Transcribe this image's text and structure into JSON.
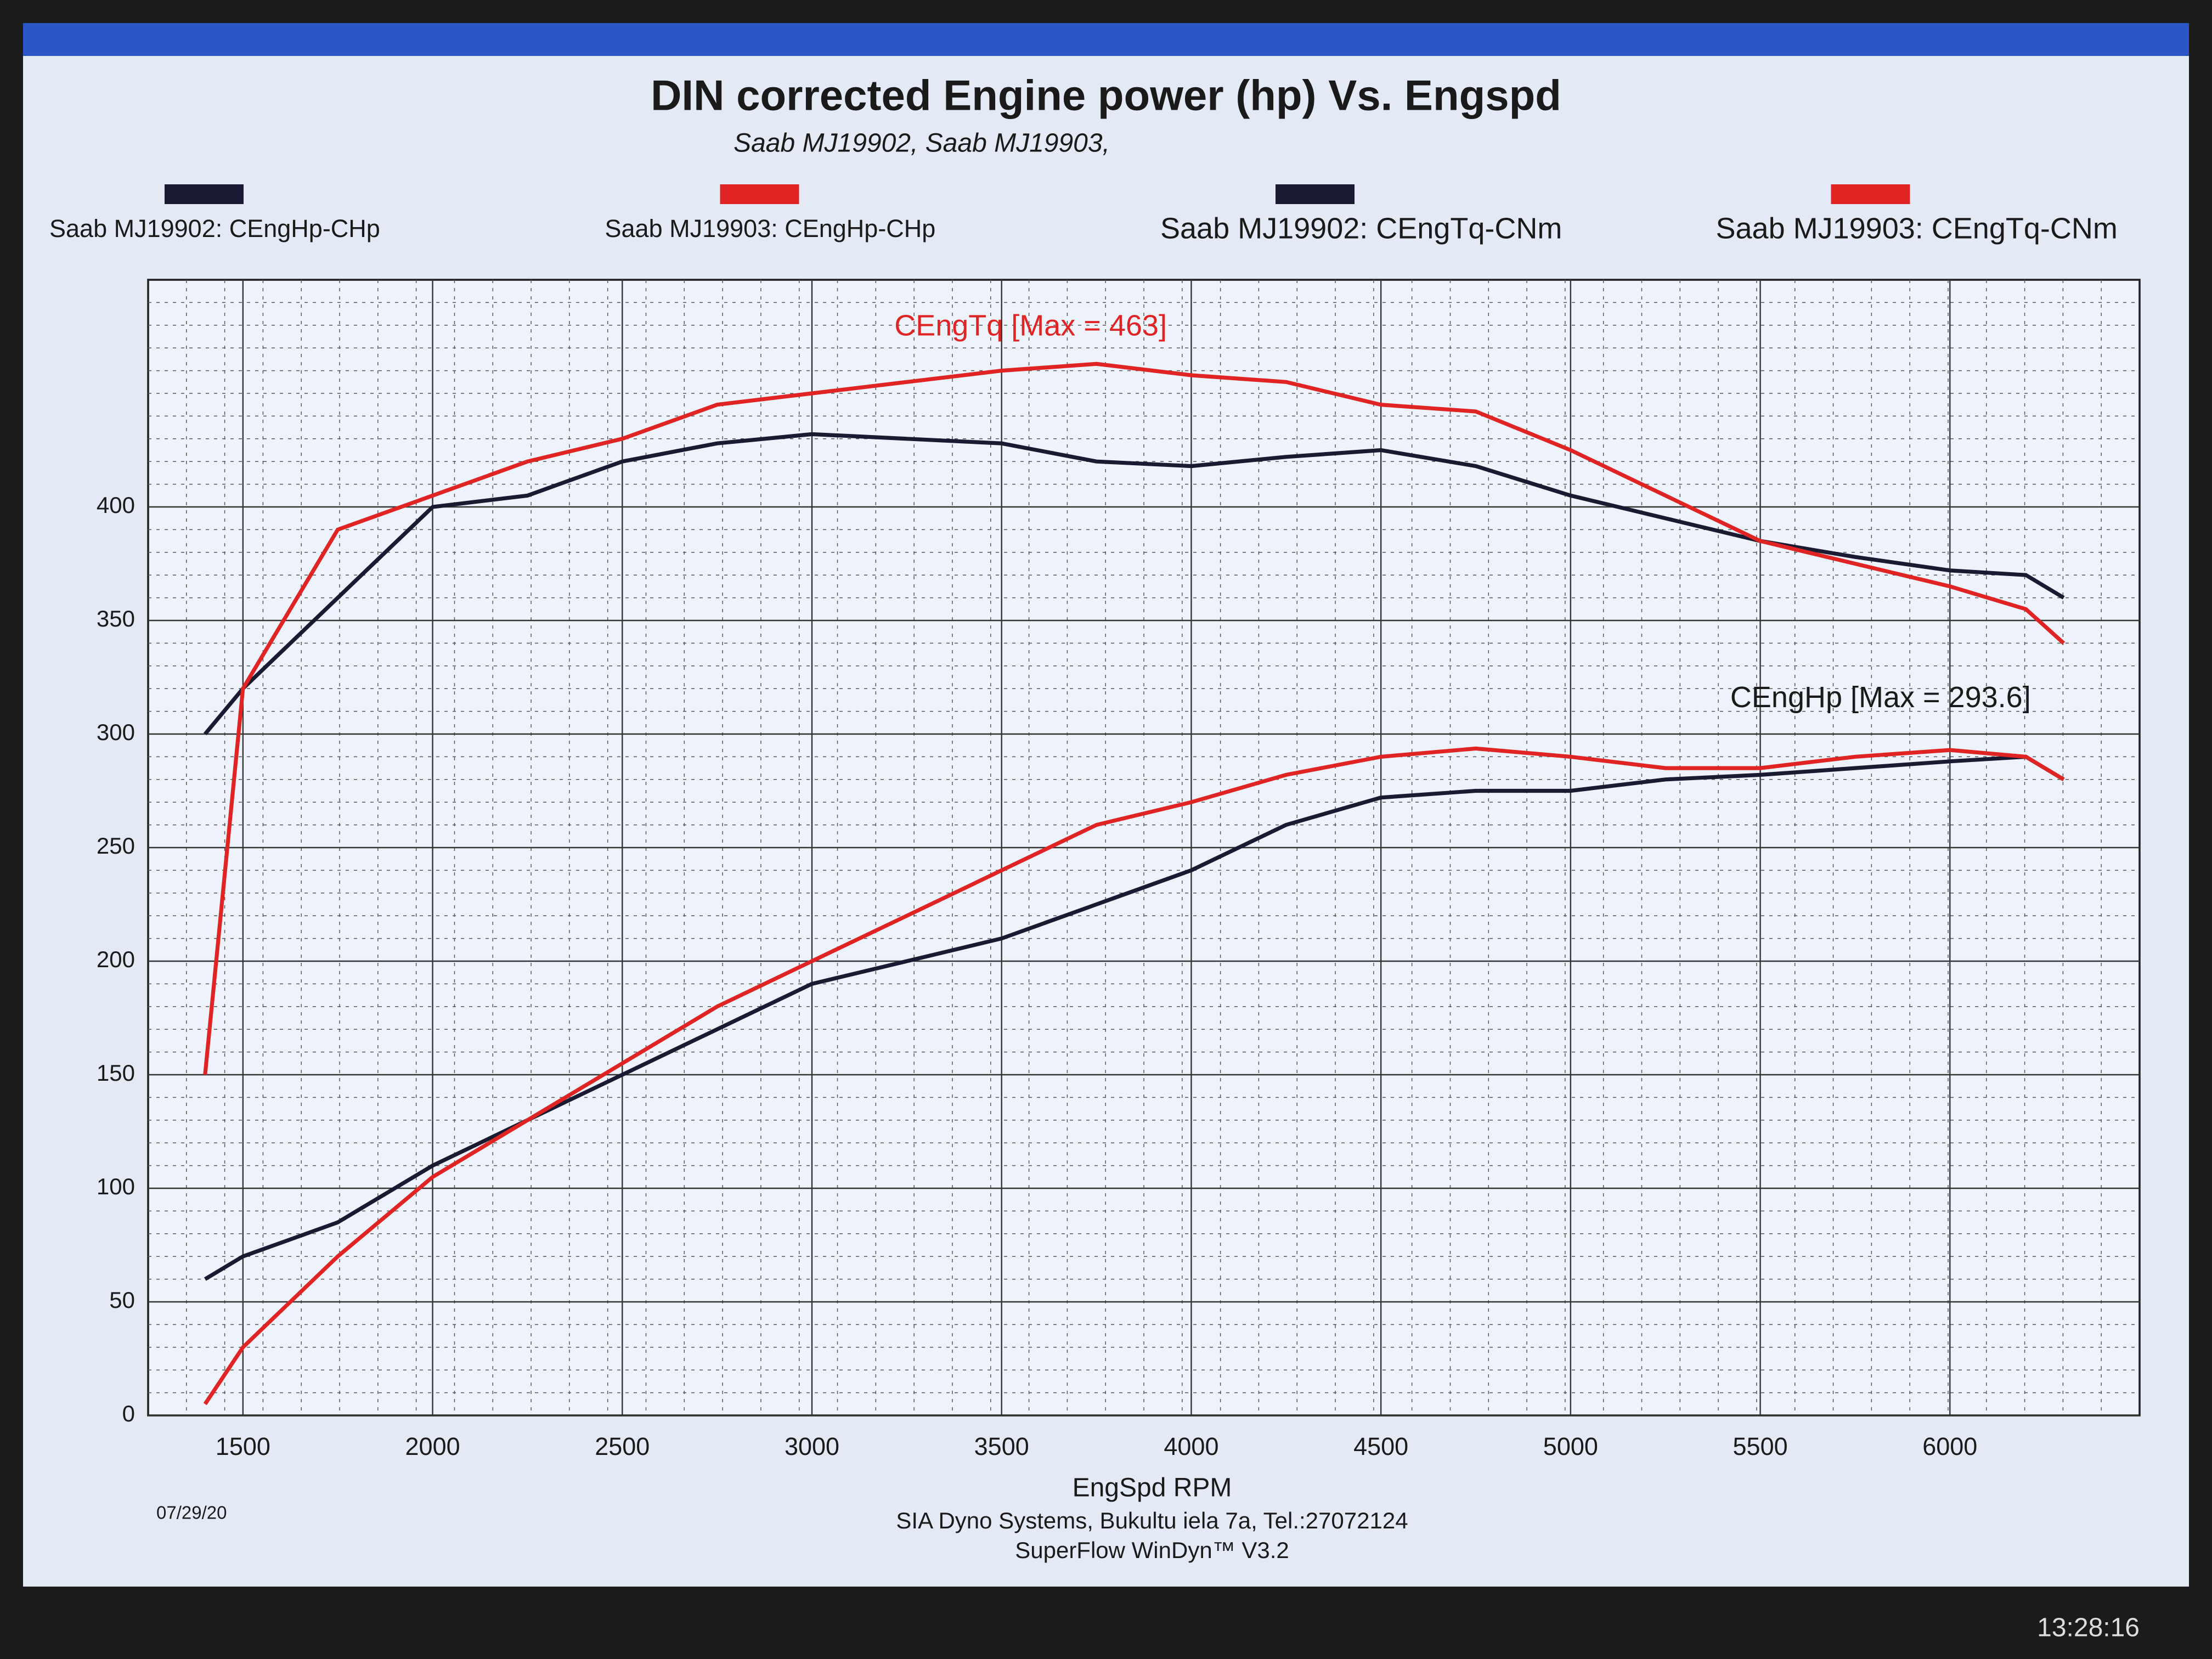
{
  "chart_data": {
    "type": "line",
    "title": "DIN corrected Engine power (hp) Vs. Engspd",
    "subtitle": "Saab MJ19902, Saab MJ19903,",
    "x_label": "EngSpd RPM",
    "annotations": [
      "CEngTq [Max = 463]",
      "CEngHp [Max = 293.6]"
    ],
    "x": [
      1400,
      1500,
      1750,
      2000,
      2250,
      2500,
      2750,
      3000,
      3250,
      3500,
      3750,
      4000,
      4250,
      4500,
      4750,
      5000,
      5250,
      5500,
      5750,
      6000,
      6200,
      6300
    ],
    "series": [
      {
        "name": "Saab MJ19902: CEngHp-CHp",
        "color": "#1a1a33",
        "values": [
          60,
          70,
          85,
          110,
          130,
          150,
          170,
          190,
          200,
          210,
          225,
          240,
          260,
          272,
          275,
          275,
          280,
          282,
          285,
          288,
          290,
          280
        ]
      },
      {
        "name": "Saab MJ19903: CEngHp-CHp",
        "color": "#e02424",
        "values": [
          5,
          30,
          70,
          105,
          130,
          155,
          180,
          200,
          220,
          240,
          260,
          270,
          282,
          290,
          293.6,
          290,
          285,
          285,
          290,
          293,
          290,
          280
        ]
      },
      {
        "name": "Saab MJ19902: CEngTq-CNm",
        "color": "#1a1a33",
        "values": [
          300,
          320,
          360,
          400,
          405,
          420,
          428,
          432,
          430,
          428,
          420,
          418,
          422,
          425,
          418,
          405,
          395,
          385,
          378,
          372,
          370,
          360
        ]
      },
      {
        "name": "Saab MJ19903: CEngTq-CNm",
        "color": "#e02424",
        "values": [
          150,
          320,
          390,
          405,
          420,
          430,
          445,
          450,
          455,
          460,
          463,
          458,
          455,
          445,
          442,
          425,
          405,
          385,
          375,
          365,
          355,
          340
        ]
      }
    ],
    "xlim": [
      1250,
      6500
    ],
    "ylim": [
      0,
      500
    ],
    "xticks": [
      1500,
      2000,
      2500,
      3000,
      3500,
      4000,
      4500,
      5000,
      5500,
      6000
    ],
    "yticks": [
      0,
      50,
      100,
      150,
      200,
      250,
      300,
      350,
      400
    ],
    "grid": true
  },
  "footer": {
    "date": "07/29/20",
    "company": "SIA Dyno Systems, Bukultu iela 7a, Tel.:27072124",
    "software": "SuperFlow WinDyn™ V3.2",
    "clock": "13:28:16"
  }
}
